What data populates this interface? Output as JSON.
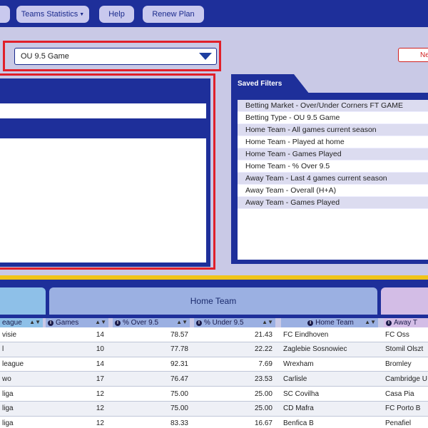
{
  "nav": {
    "teams_statistics": "Teams Statistics",
    "help": "Help",
    "renew_plan": "Renew Plan"
  },
  "market_select": {
    "value": "OU 9.5 Game"
  },
  "right_button": {
    "label": "Ne"
  },
  "saved_filters": {
    "title": "Saved Filters",
    "items": [
      "Betting Market - Over/Under Corners FT GAME",
      "Betting Type - OU 9.5 Game",
      "Home Team - All games current season",
      "Home Team - Played at home",
      "Home Team - Games Played",
      "Home Team - % Over 9.5",
      "Away Team - Last 4 games current season",
      "Away Team - Overall (H+A)",
      "Away Team - Games Played"
    ]
  },
  "table": {
    "group_home": "Home Team",
    "columns": {
      "league": "eague",
      "games": "Games",
      "over": "% Over 9.5",
      "under": "% Under 9.5",
      "home_team": "Home Team",
      "away_team": "Away T"
    },
    "rows": [
      {
        "league": "visie",
        "games": "14",
        "over": "78.57",
        "under": "21.43",
        "home": "FC Eindhoven",
        "away": "FC Oss"
      },
      {
        "league": "l",
        "games": "10",
        "over": "77.78",
        "under": "22.22",
        "home": "Zaglebie Sosnowiec",
        "away": "Stomil Olszt"
      },
      {
        "league": "league",
        "games": "14",
        "over": "92.31",
        "under": "7.69",
        "home": "Wrexham",
        "away": "Bromley"
      },
      {
        "league": "wo",
        "games": "17",
        "over": "76.47",
        "under": "23.53",
        "home": "Carlisle",
        "away": "Cambridge U"
      },
      {
        "league": "liga",
        "games": "12",
        "over": "75.00",
        "under": "25.00",
        "home": "SC Covilha",
        "away": "Casa Pia"
      },
      {
        "league": "liga",
        "games": "12",
        "over": "75.00",
        "under": "25.00",
        "home": "CD Mafra",
        "away": "FC Porto B"
      },
      {
        "league": "liga",
        "games": "12",
        "over": "83.33",
        "under": "16.67",
        "home": "Benfica B",
        "away": "Penafiel"
      }
    ]
  }
}
